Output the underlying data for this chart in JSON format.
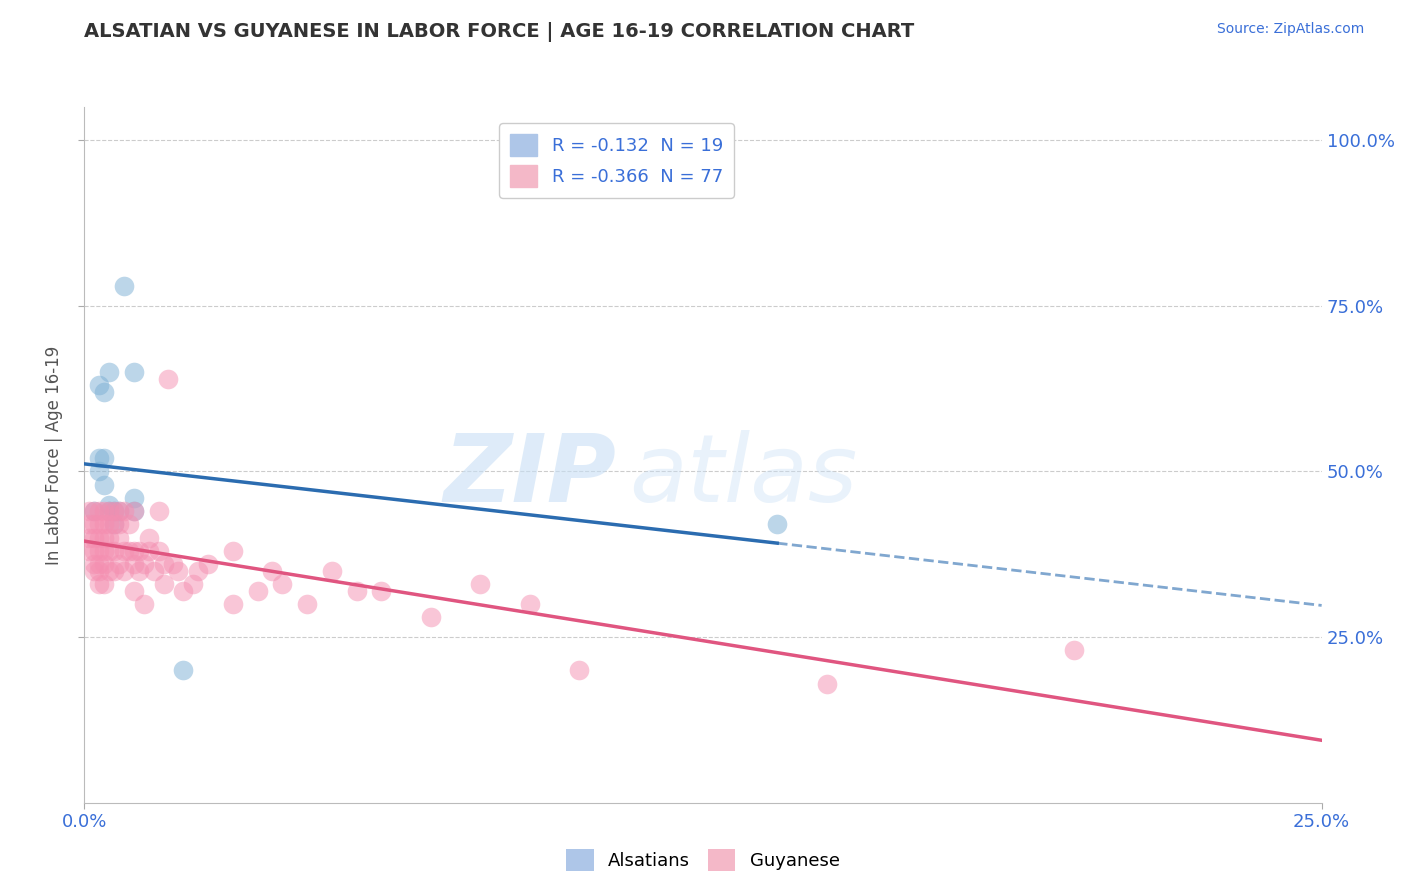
{
  "title": "ALSATIAN VS GUYANESE IN LABOR FORCE | AGE 16-19 CORRELATION CHART",
  "source_text": "Source: ZipAtlas.com",
  "ylabel": "In Labor Force | Age 16-19",
  "xlim": [
    0.0,
    0.25
  ],
  "ylim": [
    0.0,
    1.05
  ],
  "ytick_labels": [
    "25.0%",
    "50.0%",
    "75.0%",
    "100.0%"
  ],
  "ytick_values": [
    0.25,
    0.5,
    0.75,
    1.0
  ],
  "xtick_labels": [
    "0.0%",
    "25.0%"
  ],
  "xtick_values": [
    0.0,
    0.25
  ],
  "alsatian_color": "#7bafd4",
  "guyanese_color": "#f48fb1",
  "alsatian_line_color": "#2b6cb0",
  "guyanese_line_color": "#e05580",
  "watermark_zip": "ZIP",
  "watermark_atlas": "atlas",
  "alsatian_points": [
    [
      0.002,
      0.44
    ],
    [
      0.003,
      0.63
    ],
    [
      0.003,
      0.52
    ],
    [
      0.003,
      0.5
    ],
    [
      0.004,
      0.62
    ],
    [
      0.004,
      0.52
    ],
    [
      0.004,
      0.48
    ],
    [
      0.005,
      0.65
    ],
    [
      0.005,
      0.45
    ],
    [
      0.005,
      0.44
    ],
    [
      0.006,
      0.42
    ],
    [
      0.006,
      0.44
    ],
    [
      0.007,
      0.44
    ],
    [
      0.008,
      0.78
    ],
    [
      0.01,
      0.44
    ],
    [
      0.01,
      0.46
    ],
    [
      0.01,
      0.65
    ],
    [
      0.14,
      0.42
    ],
    [
      0.02,
      0.2
    ]
  ],
  "guyanese_points": [
    [
      0.001,
      0.44
    ],
    [
      0.001,
      0.42
    ],
    [
      0.001,
      0.4
    ],
    [
      0.001,
      0.38
    ],
    [
      0.002,
      0.44
    ],
    [
      0.002,
      0.42
    ],
    [
      0.002,
      0.4
    ],
    [
      0.002,
      0.38
    ],
    [
      0.002,
      0.36
    ],
    [
      0.002,
      0.35
    ],
    [
      0.003,
      0.44
    ],
    [
      0.003,
      0.42
    ],
    [
      0.003,
      0.4
    ],
    [
      0.003,
      0.38
    ],
    [
      0.003,
      0.36
    ],
    [
      0.003,
      0.35
    ],
    [
      0.003,
      0.33
    ],
    [
      0.004,
      0.44
    ],
    [
      0.004,
      0.42
    ],
    [
      0.004,
      0.4
    ],
    [
      0.004,
      0.38
    ],
    [
      0.004,
      0.36
    ],
    [
      0.004,
      0.33
    ],
    [
      0.005,
      0.44
    ],
    [
      0.005,
      0.42
    ],
    [
      0.005,
      0.4
    ],
    [
      0.005,
      0.38
    ],
    [
      0.005,
      0.35
    ],
    [
      0.006,
      0.44
    ],
    [
      0.006,
      0.42
    ],
    [
      0.006,
      0.38
    ],
    [
      0.006,
      0.35
    ],
    [
      0.007,
      0.44
    ],
    [
      0.007,
      0.42
    ],
    [
      0.007,
      0.4
    ],
    [
      0.007,
      0.36
    ],
    [
      0.008,
      0.44
    ],
    [
      0.008,
      0.38
    ],
    [
      0.008,
      0.35
    ],
    [
      0.009,
      0.42
    ],
    [
      0.009,
      0.38
    ],
    [
      0.01,
      0.44
    ],
    [
      0.01,
      0.38
    ],
    [
      0.01,
      0.36
    ],
    [
      0.01,
      0.32
    ],
    [
      0.011,
      0.38
    ],
    [
      0.011,
      0.35
    ],
    [
      0.012,
      0.36
    ],
    [
      0.012,
      0.3
    ],
    [
      0.013,
      0.4
    ],
    [
      0.013,
      0.38
    ],
    [
      0.014,
      0.35
    ],
    [
      0.015,
      0.44
    ],
    [
      0.015,
      0.38
    ],
    [
      0.016,
      0.36
    ],
    [
      0.016,
      0.33
    ],
    [
      0.017,
      0.64
    ],
    [
      0.018,
      0.36
    ],
    [
      0.019,
      0.35
    ],
    [
      0.02,
      0.32
    ],
    [
      0.022,
      0.33
    ],
    [
      0.023,
      0.35
    ],
    [
      0.025,
      0.36
    ],
    [
      0.03,
      0.3
    ],
    [
      0.03,
      0.38
    ],
    [
      0.035,
      0.32
    ],
    [
      0.038,
      0.35
    ],
    [
      0.04,
      0.33
    ],
    [
      0.045,
      0.3
    ],
    [
      0.05,
      0.35
    ],
    [
      0.055,
      0.32
    ],
    [
      0.06,
      0.32
    ],
    [
      0.07,
      0.28
    ],
    [
      0.08,
      0.33
    ],
    [
      0.09,
      0.3
    ],
    [
      0.1,
      0.2
    ],
    [
      0.15,
      0.18
    ],
    [
      0.2,
      0.23
    ]
  ]
}
